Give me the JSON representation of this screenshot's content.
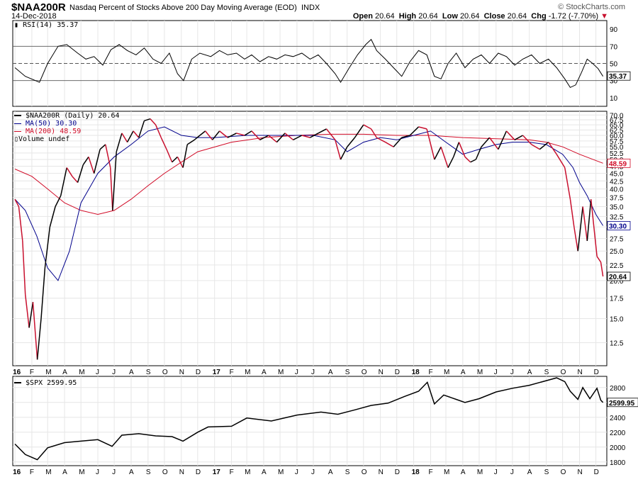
{
  "header": {
    "symbol": "$NAA200R",
    "description": "Nasdaq Percent of Stocks Above 200 Day Moving Average (EOD)",
    "exchange": "INDX",
    "date": "14-Dec-2018",
    "brand": "© StockCharts.com",
    "open_label": "Open",
    "open": "20.64",
    "high_label": "High",
    "high": "20.64",
    "low_label": "Low",
    "low": "20.64",
    "close_label": "Close",
    "close": "20.64",
    "chg_label": "Chg",
    "chg": "-1.72 (-7.70%)"
  },
  "legends": {
    "rsi": "RSI(14) 35.37",
    "price": "$NAA200R (Daily) 20.64",
    "ma50": "MA(50) 30.30",
    "ma200": "MA(200) 48.59",
    "volume": "Volume undef",
    "spx": "$SPX 2599.95"
  },
  "colors": {
    "price": "#000000",
    "price_down": "#c8102e",
    "ma50": "#00008b",
    "ma200": "#d10a26",
    "rsi_fill": "#8b6f6f",
    "grid": "#e6e6e6"
  },
  "chart_data": [
    {
      "type": "line",
      "name": "rsi_panel",
      "title": "RSI(14)",
      "ylim": [
        0,
        100
      ],
      "yticks": [
        10,
        30,
        50,
        70,
        90
      ],
      "guide_lines": [
        30,
        50,
        70
      ],
      "last_value_tag": "35.37",
      "series": [
        {
          "name": "RSI(14)",
          "x": [
            "2016-01-01",
            "2016-01-20",
            "2016-02-15",
            "2016-03-01",
            "2016-03-20",
            "2016-04-05",
            "2016-04-25",
            "2016-05-10",
            "2016-05-25",
            "2016-06-10",
            "2016-06-25",
            "2016-07-10",
            "2016-07-25",
            "2016-08-10",
            "2016-08-25",
            "2016-09-10",
            "2016-09-25",
            "2016-10-10",
            "2016-10-25",
            "2016-11-05",
            "2016-11-20",
            "2016-12-05",
            "2016-12-25",
            "2017-01-10",
            "2017-01-25",
            "2017-02-10",
            "2017-02-25",
            "2017-03-10",
            "2017-03-25",
            "2017-04-10",
            "2017-04-25",
            "2017-05-10",
            "2017-05-25",
            "2017-06-10",
            "2017-06-25",
            "2017-07-10",
            "2017-07-25",
            "2017-08-10",
            "2017-08-20",
            "2017-09-05",
            "2017-09-20",
            "2017-10-05",
            "2017-10-15",
            "2017-10-25",
            "2017-11-10",
            "2017-11-25",
            "2017-12-10",
            "2017-12-25",
            "2018-01-10",
            "2018-01-25",
            "2018-02-08",
            "2018-02-20",
            "2018-03-05",
            "2018-03-20",
            "2018-04-05",
            "2018-04-20",
            "2018-05-05",
            "2018-05-20",
            "2018-06-05",
            "2018-06-20",
            "2018-07-05",
            "2018-07-20",
            "2018-08-05",
            "2018-08-20",
            "2018-09-05",
            "2018-09-20",
            "2018-10-05",
            "2018-10-15",
            "2018-10-25",
            "2018-11-05",
            "2018-11-15",
            "2018-11-25",
            "2018-12-05",
            "2018-12-14"
          ],
          "values": [
            45,
            35,
            28,
            50,
            70,
            72,
            62,
            55,
            58,
            48,
            66,
            72,
            65,
            60,
            68,
            55,
            50,
            62,
            38,
            30,
            55,
            62,
            58,
            65,
            60,
            62,
            55,
            60,
            52,
            58,
            55,
            60,
            58,
            62,
            55,
            60,
            50,
            38,
            28,
            45,
            60,
            72,
            78,
            65,
            55,
            45,
            35,
            52,
            65,
            60,
            35,
            32,
            50,
            62,
            45,
            55,
            60,
            50,
            62,
            58,
            48,
            55,
            60,
            50,
            55,
            45,
            32,
            22,
            25,
            40,
            55,
            50,
            44,
            35
          ]
        }
      ]
    },
    {
      "type": "line",
      "name": "price_panel",
      "title": "$NAA200R (Daily)",
      "scale": "log",
      "ylim": [
        10.5,
        72
      ],
      "yticks": [
        12.5,
        15.0,
        17.5,
        20.0,
        22.5,
        25.0,
        27.5,
        30.0,
        32.5,
        35.0,
        37.5,
        40.0,
        42.5,
        45.0,
        47.5,
        50.0,
        52.5,
        55.0,
        57.5,
        60.0,
        62.5,
        65.0,
        67.5,
        70.0
      ],
      "xticks": [
        "16",
        "F",
        "M",
        "A",
        "M",
        "J",
        "J",
        "A",
        "S",
        "O",
        "N",
        "D",
        "17",
        "F",
        "M",
        "A",
        "M",
        "J",
        "J",
        "A",
        "S",
        "O",
        "N",
        "D",
        "18",
        "F",
        "M",
        "A",
        "M",
        "J",
        "J",
        "A",
        "S",
        "O",
        "N",
        "D"
      ],
      "xtick_dates": [
        "2016-01-01",
        "2016-02-01",
        "2016-03-01",
        "2016-04-01",
        "2016-05-01",
        "2016-06-01",
        "2016-07-01",
        "2016-08-01",
        "2016-09-01",
        "2016-10-01",
        "2016-11-01",
        "2016-12-01",
        "2017-01-01",
        "2017-02-01",
        "2017-03-01",
        "2017-04-01",
        "2017-05-01",
        "2017-06-01",
        "2017-07-01",
        "2017-08-01",
        "2017-09-01",
        "2017-10-01",
        "2017-11-01",
        "2017-12-01",
        "2018-01-01",
        "2018-02-01",
        "2018-03-01",
        "2018-04-01",
        "2018-05-01",
        "2018-06-01",
        "2018-07-01",
        "2018-08-01",
        "2018-09-01",
        "2018-10-01",
        "2018-11-01",
        "2018-12-01"
      ],
      "tags": {
        "ma200": "48.59",
        "ma50": "30.30",
        "price": "20.64"
      },
      "series": [
        {
          "name": "$NAA200R",
          "x": [
            "2016-01-01",
            "2016-01-08",
            "2016-01-15",
            "2016-01-20",
            "2016-01-27",
            "2016-02-03",
            "2016-02-11",
            "2016-02-18",
            "2016-02-25",
            "2016-03-05",
            "2016-03-15",
            "2016-03-25",
            "2016-04-05",
            "2016-04-15",
            "2016-04-25",
            "2016-05-05",
            "2016-05-15",
            "2016-05-25",
            "2016-06-05",
            "2016-06-15",
            "2016-06-24",
            "2016-06-28",
            "2016-07-05",
            "2016-07-15",
            "2016-07-25",
            "2016-08-05",
            "2016-08-15",
            "2016-08-25",
            "2016-09-05",
            "2016-09-15",
            "2016-09-25",
            "2016-10-05",
            "2016-10-15",
            "2016-10-25",
            "2016-11-04",
            "2016-11-12",
            "2016-11-25",
            "2016-12-05",
            "2016-12-15",
            "2016-12-28",
            "2017-01-10",
            "2017-01-25",
            "2017-02-10",
            "2017-02-25",
            "2017-03-10",
            "2017-03-25",
            "2017-04-10",
            "2017-04-25",
            "2017-05-10",
            "2017-05-25",
            "2017-06-10",
            "2017-06-25",
            "2017-07-10",
            "2017-07-25",
            "2017-08-10",
            "2017-08-20",
            "2017-09-01",
            "2017-09-15",
            "2017-10-01",
            "2017-10-15",
            "2017-10-25",
            "2017-11-10",
            "2017-11-25",
            "2017-12-10",
            "2017-12-25",
            "2018-01-10",
            "2018-01-25",
            "2018-02-08",
            "2018-02-20",
            "2018-03-05",
            "2018-03-15",
            "2018-03-25",
            "2018-04-05",
            "2018-04-15",
            "2018-04-25",
            "2018-05-05",
            "2018-05-20",
            "2018-06-05",
            "2018-06-20",
            "2018-07-05",
            "2018-07-20",
            "2018-08-05",
            "2018-08-20",
            "2018-09-05",
            "2018-09-20",
            "2018-10-05",
            "2018-10-15",
            "2018-10-22",
            "2018-10-29",
            "2018-11-07",
            "2018-11-15",
            "2018-11-22",
            "2018-12-03",
            "2018-12-10",
            "2018-12-14"
          ],
          "values": [
            37,
            35,
            27,
            18,
            14,
            17,
            11,
            15,
            22,
            30,
            35,
            38,
            47,
            44,
            42,
            48,
            51,
            45,
            54,
            56,
            47,
            34,
            53,
            61,
            57,
            62,
            59,
            67,
            68,
            65,
            59,
            54,
            49,
            51,
            47,
            56,
            58,
            60,
            62,
            58,
            62,
            59,
            61,
            60,
            62,
            58,
            60,
            57,
            61,
            58,
            60,
            59,
            61,
            63,
            58,
            50,
            55,
            59,
            65,
            63,
            59,
            57,
            55,
            59,
            60,
            64,
            63,
            50,
            55,
            47,
            51,
            57,
            51,
            49,
            50,
            55,
            59,
            54,
            62,
            58,
            60,
            56,
            54,
            57,
            52,
            47,
            37,
            30,
            25,
            35,
            27,
            37,
            24,
            23,
            20.64
          ]
        },
        {
          "name": "MA(50)",
          "x": [
            "2016-01-01",
            "2016-01-20",
            "2016-02-10",
            "2016-03-01",
            "2016-03-20",
            "2016-04-10",
            "2016-05-01",
            "2016-06-01",
            "2016-07-01",
            "2016-08-01",
            "2016-09-01",
            "2016-10-01",
            "2016-11-01",
            "2016-12-01",
            "2017-01-01",
            "2017-03-01",
            "2017-05-01",
            "2017-07-01",
            "2017-08-10",
            "2017-09-01",
            "2017-10-01",
            "2017-11-01",
            "2017-12-01",
            "2018-01-01",
            "2018-02-01",
            "2018-03-01",
            "2018-04-01",
            "2018-05-01",
            "2018-06-01",
            "2018-07-01",
            "2018-08-01",
            "2018-09-01",
            "2018-10-01",
            "2018-10-20",
            "2018-11-01",
            "2018-11-15",
            "2018-12-01",
            "2018-12-14"
          ],
          "values": [
            37,
            34,
            28,
            22,
            20,
            25,
            36,
            45,
            51,
            56,
            62,
            64,
            60,
            59,
            59,
            60,
            60,
            60,
            58,
            53,
            57,
            59,
            58,
            60,
            62,
            57,
            52,
            54,
            56,
            57,
            57,
            56,
            52,
            47,
            42,
            38,
            33,
            30.3
          ]
        },
        {
          "name": "MA(200)",
          "x": [
            "2016-01-01",
            "2016-02-01",
            "2016-03-01",
            "2016-04-01",
            "2016-05-01",
            "2016-06-01",
            "2016-07-01",
            "2016-08-01",
            "2016-09-01",
            "2016-10-01",
            "2016-11-01",
            "2016-12-01",
            "2017-02-01",
            "2017-04-01",
            "2017-06-01",
            "2017-08-01",
            "2017-10-01",
            "2017-12-01",
            "2018-02-01",
            "2018-04-01",
            "2018-06-01",
            "2018-08-01",
            "2018-09-01",
            "2018-10-01",
            "2018-11-01",
            "2018-12-14"
          ],
          "values": [
            46.5,
            44,
            40,
            36,
            34,
            33,
            34,
            37,
            41,
            45,
            49,
            53,
            57,
            59,
            60,
            60.5,
            60.5,
            60,
            60,
            59,
            58.5,
            58,
            57,
            55,
            52,
            48.59
          ]
        }
      ]
    },
    {
      "type": "line",
      "name": "spx_panel",
      "title": "$SPX",
      "ylim": [
        1750,
        2950
      ],
      "yticks": [
        1800,
        2000,
        2200,
        2400,
        2600,
        2800
      ],
      "last_value_tag": "2599.95",
      "series": [
        {
          "name": "$SPX",
          "x": [
            "2016-01-01",
            "2016-01-20",
            "2016-02-11",
            "2016-03-01",
            "2016-04-01",
            "2016-05-01",
            "2016-06-01",
            "2016-06-27",
            "2016-07-15",
            "2016-08-15",
            "2016-09-15",
            "2016-10-15",
            "2016-11-04",
            "2016-12-01",
            "2016-12-20",
            "2017-02-01",
            "2017-03-01",
            "2017-04-15",
            "2017-06-01",
            "2017-07-15",
            "2017-08-15",
            "2017-09-15",
            "2017-10-15",
            "2017-11-15",
            "2017-12-15",
            "2018-01-10",
            "2018-01-26",
            "2018-02-08",
            "2018-02-25",
            "2018-03-20",
            "2018-04-05",
            "2018-05-01",
            "2018-06-01",
            "2018-07-01",
            "2018-08-01",
            "2018-09-20",
            "2018-10-05",
            "2018-10-15",
            "2018-10-29",
            "2018-11-07",
            "2018-11-20",
            "2018-12-03",
            "2018-12-10",
            "2018-12-14"
          ],
          "values": [
            2040,
            1900,
            1830,
            1990,
            2060,
            2080,
            2100,
            2010,
            2160,
            2180,
            2150,
            2140,
            2080,
            2200,
            2270,
            2280,
            2390,
            2350,
            2430,
            2470,
            2440,
            2500,
            2560,
            2590,
            2680,
            2750,
            2870,
            2580,
            2700,
            2640,
            2600,
            2650,
            2740,
            2790,
            2830,
            2930,
            2880,
            2750,
            2640,
            2800,
            2650,
            2790,
            2630,
            2599.95
          ]
        }
      ]
    }
  ]
}
